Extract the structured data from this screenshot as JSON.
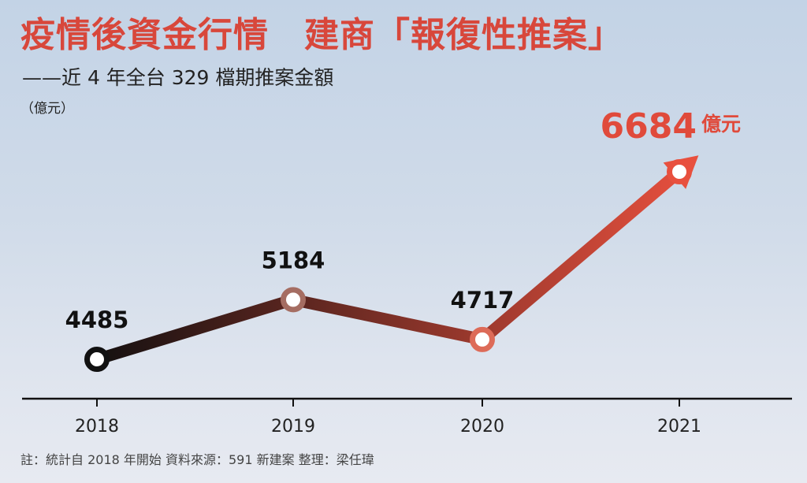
{
  "title": "疫情後資金行情　建商「報復性推案」",
  "subtitle": "——近 4 年全台 329 檔期推案金額",
  "unit_label": "（億元）",
  "footnote": "註：統計自 2018 年開始 資料來源：591 新建案 整理：梁任瑋",
  "colors": {
    "title": "#d8473b",
    "highlight": "#e04a3b",
    "line_start": "#141010",
    "line_end": "#e8503e"
  },
  "chart_data": {
    "type": "line",
    "title": "疫情後資金行情　建商「報復性推案」",
    "subtitle": "——近 4 年全台 329 檔期推案金額",
    "ylabel": "（億元）",
    "xlabel": "",
    "categories": [
      "2018",
      "2019",
      "2020",
      "2021"
    ],
    "series": [
      {
        "values": [
          4485,
          5184,
          4717,
          6684
        ]
      }
    ],
    "data_labels": [
      "4485",
      "5184",
      "4717",
      "6684"
    ],
    "highlight_unit": "億元",
    "ylim": [
      3800,
      7000
    ],
    "grid": false,
    "legend": "none"
  }
}
